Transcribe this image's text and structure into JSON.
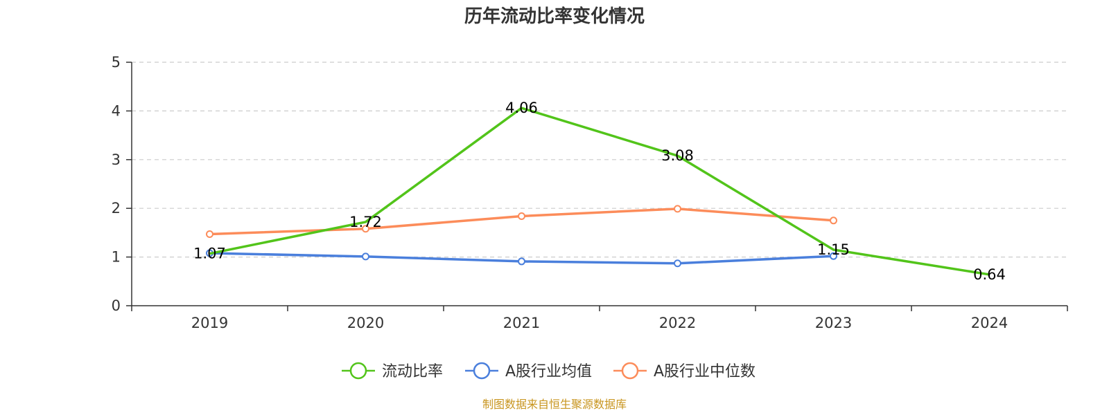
{
  "chart_data": {
    "type": "line",
    "title": "历年流动比率变化情况",
    "categories": [
      "2019",
      "2020",
      "2021",
      "2022",
      "2023",
      "2024"
    ],
    "ylim": [
      0,
      5
    ],
    "yticks": [
      "0",
      "1",
      "2",
      "3",
      "4",
      "5"
    ],
    "grid": "horizontal-dashed",
    "legend_position": "bottom-center",
    "series": [
      {
        "name": "流动比率",
        "color": "#52c41a",
        "values": [
          1.07,
          1.72,
          4.06,
          3.08,
          1.15,
          0.64
        ],
        "labels": [
          "1.07",
          "1.72",
          "4.06",
          "3.08",
          "1.15",
          "0.64"
        ]
      },
      {
        "name": "A股行业均值",
        "color": "#4a7fdc",
        "values": [
          1.08,
          1.01,
          0.91,
          0.87,
          1.02,
          null
        ]
      },
      {
        "name": "A股行业中位数",
        "color": "#fc8c5a",
        "values": [
          1.47,
          1.58,
          1.84,
          1.99,
          1.75,
          null
        ]
      }
    ],
    "source": "制图数据来自恒生聚源数据库"
  }
}
